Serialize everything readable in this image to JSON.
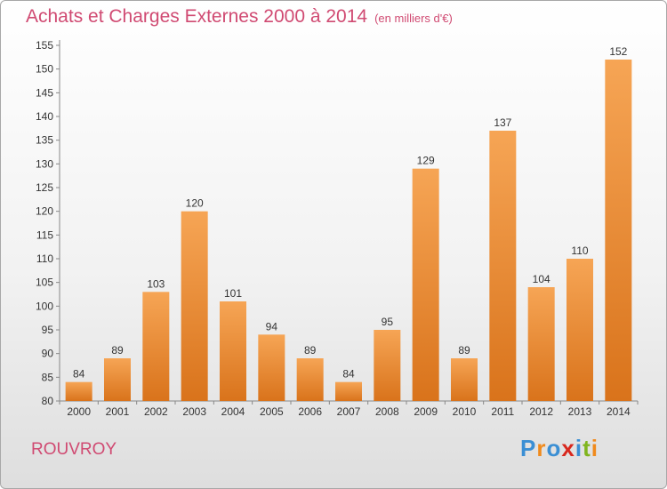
{
  "title": "Achats et Charges Externes 2000 à 2014",
  "unit_note": "(en milliers d'€)",
  "location": "ROUVROY",
  "brand": {
    "name": "Proxiti",
    "letters": [
      "P",
      "r",
      "o",
      "x",
      "i",
      "t",
      "i"
    ],
    "colors": [
      "#3b8fd4",
      "#f08a1c",
      "#3b8fd4",
      "#d8281e",
      "#3b8fd4",
      "#80b51f",
      "#f08a1c"
    ]
  },
  "colors": {
    "bar_top": "#f6a555",
    "bar_bottom": "#d9731b",
    "title": "#d04a72"
  },
  "chart_data": {
    "type": "bar",
    "title": "Achats et Charges Externes 2000 à 2014",
    "ylabel": "",
    "xlabel": "",
    "categories": [
      "2000",
      "2001",
      "2002",
      "2003",
      "2004",
      "2005",
      "2006",
      "2007",
      "2008",
      "2009",
      "2010",
      "2011",
      "2012",
      "2013",
      "2014"
    ],
    "values": [
      84,
      89,
      103,
      120,
      101,
      94,
      89,
      84,
      95,
      129,
      89,
      137,
      104,
      110,
      152
    ],
    "ylim": [
      80,
      155
    ],
    "yticks": [
      80,
      85,
      90,
      95,
      100,
      105,
      110,
      115,
      120,
      125,
      130,
      135,
      140,
      145,
      150,
      155
    ],
    "grid": false,
    "data_labels": true
  }
}
